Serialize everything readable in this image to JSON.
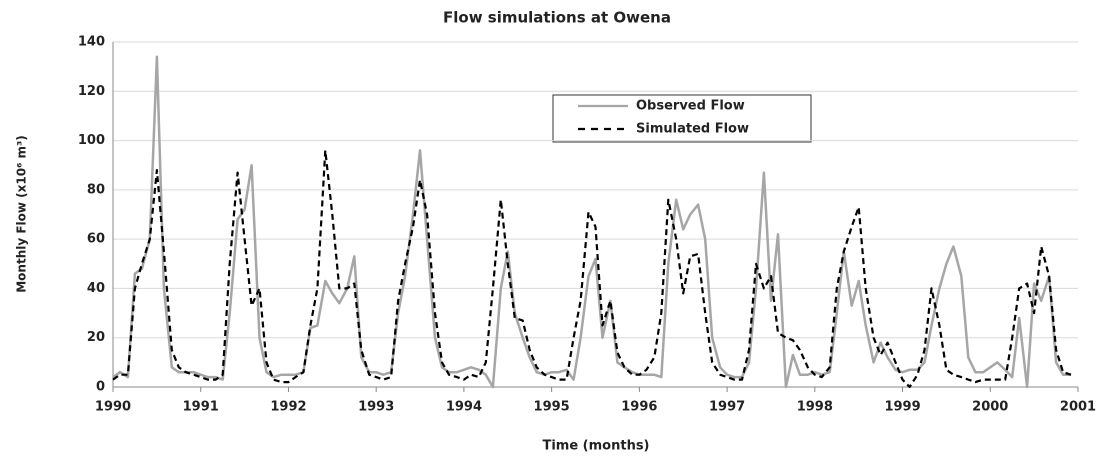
{
  "chart_data": {
    "type": "line",
    "title": "Flow simulations at Owena",
    "x_label": "Time (months)",
    "y_label": "Monthly Flow (x10⁶ m³)",
    "x": [
      1990,
      1990.08,
      1990.17,
      1990.25,
      1990.33,
      1990.42,
      1990.5,
      1990.58,
      1990.67,
      1990.75,
      1990.83,
      1990.92,
      1991,
      1991.08,
      1991.17,
      1991.25,
      1991.33,
      1991.42,
      1991.5,
      1991.58,
      1991.67,
      1991.75,
      1991.83,
      1991.92,
      1992,
      1992.08,
      1992.17,
      1992.25,
      1992.33,
      1992.42,
      1992.5,
      1992.58,
      1992.67,
      1992.75,
      1992.83,
      1992.92,
      1993,
      1993.08,
      1993.17,
      1993.25,
      1993.33,
      1993.42,
      1993.5,
      1993.58,
      1993.67,
      1993.75,
      1993.83,
      1993.92,
      1994,
      1994.08,
      1994.17,
      1994.25,
      1994.33,
      1994.42,
      1994.5,
      1994.58,
      1994.67,
      1994.75,
      1994.83,
      1994.92,
      1995,
      1995.08,
      1995.17,
      1995.25,
      1995.33,
      1995.42,
      1995.5,
      1995.58,
      1995.67,
      1995.75,
      1995.83,
      1995.92,
      1996,
      1996.08,
      1996.17,
      1996.25,
      1996.33,
      1996.42,
      1996.5,
      1996.58,
      1996.67,
      1996.75,
      1996.83,
      1996.92,
      1997,
      1997.08,
      1997.17,
      1997.25,
      1997.33,
      1997.42,
      1997.5,
      1997.58,
      1997.67,
      1997.75,
      1997.83,
      1997.92,
      1998,
      1998.08,
      1998.17,
      1998.25,
      1998.33,
      1998.42,
      1998.5,
      1998.58,
      1998.67,
      1998.75,
      1998.83,
      1998.92,
      1999,
      1999.08,
      1999.17,
      1999.25,
      1999.33,
      1999.42,
      1999.5,
      1999.58,
      1999.67,
      1999.75,
      1999.83,
      1999.92,
      2000,
      2000.08,
      2000.17,
      2000.25,
      2000.33,
      2000.42,
      2000.5,
      2000.58,
      2000.67,
      2000.75,
      2000.83,
      2000.92
    ],
    "series": [
      {
        "name": "Observed Flow",
        "color": "#a6a6a6",
        "line_style": "solid",
        "values": [
          4,
          6,
          4,
          46,
          48,
          60,
          134,
          40,
          8,
          6,
          6,
          6,
          5,
          4,
          4,
          3,
          30,
          68,
          72,
          90,
          20,
          6,
          4,
          5,
          5,
          5,
          6,
          24,
          25,
          43,
          38,
          34,
          40,
          53,
          12,
          6,
          6,
          5,
          6,
          30,
          45,
          70,
          96,
          60,
          20,
          8,
          6,
          6,
          7,
          8,
          7,
          5,
          0,
          40,
          55,
          30,
          20,
          12,
          6,
          5,
          6,
          6,
          7,
          3,
          20,
          45,
          52,
          20,
          35,
          10,
          8,
          6,
          5,
          5,
          5,
          4,
          50,
          76,
          64,
          70,
          74,
          60,
          20,
          8,
          5,
          4,
          4,
          10,
          40,
          87,
          35,
          62,
          0,
          13,
          5,
          5,
          6,
          5,
          6,
          30,
          55,
          33,
          43,
          25,
          10,
          18,
          12,
          7,
          6,
          7,
          7,
          10,
          25,
          40,
          50,
          57,
          45,
          12,
          6,
          6,
          8,
          10,
          7,
          4,
          28,
          0,
          42,
          35,
          45,
          10,
          5,
          5
        ]
      },
      {
        "name": "Simulated Flow",
        "color": "#000000",
        "line_style": "dashed",
        "values": [
          3,
          5,
          5,
          40,
          50,
          60,
          88,
          55,
          15,
          8,
          6,
          5,
          4,
          3,
          3,
          5,
          50,
          87,
          60,
          33,
          40,
          10,
          3,
          2,
          2,
          4,
          6,
          25,
          40,
          96,
          70,
          40,
          40,
          42,
          15,
          5,
          4,
          3,
          4,
          35,
          50,
          65,
          84,
          70,
          30,
          10,
          5,
          4,
          3,
          5,
          4,
          10,
          40,
          76,
          50,
          28,
          27,
          15,
          8,
          5,
          4,
          3,
          3,
          20,
          35,
          71,
          65,
          25,
          35,
          14,
          8,
          5,
          5,
          7,
          12,
          30,
          76,
          60,
          38,
          53,
          54,
          30,
          10,
          5,
          4,
          3,
          3,
          15,
          50,
          40,
          45,
          22,
          20,
          19,
          15,
          8,
          5,
          4,
          8,
          40,
          55,
          65,
          73,
          40,
          20,
          13,
          18,
          10,
          3,
          0,
          5,
          15,
          40,
          25,
          7,
          5,
          4,
          3,
          2,
          3,
          3,
          3,
          3,
          20,
          40,
          42,
          30,
          57,
          45,
          15,
          6,
          5
        ]
      }
    ],
    "xlim": [
      1990,
      2001
    ],
    "xticks": [
      1990,
      1991,
      1992,
      1993,
      1994,
      1995,
      1996,
      1997,
      1998,
      1999,
      2000,
      2001
    ],
    "ylim": [
      0,
      140
    ],
    "yticks": [
      0,
      20,
      40,
      60,
      80,
      100,
      120,
      140
    ],
    "grid": true,
    "legend": "top-center"
  }
}
